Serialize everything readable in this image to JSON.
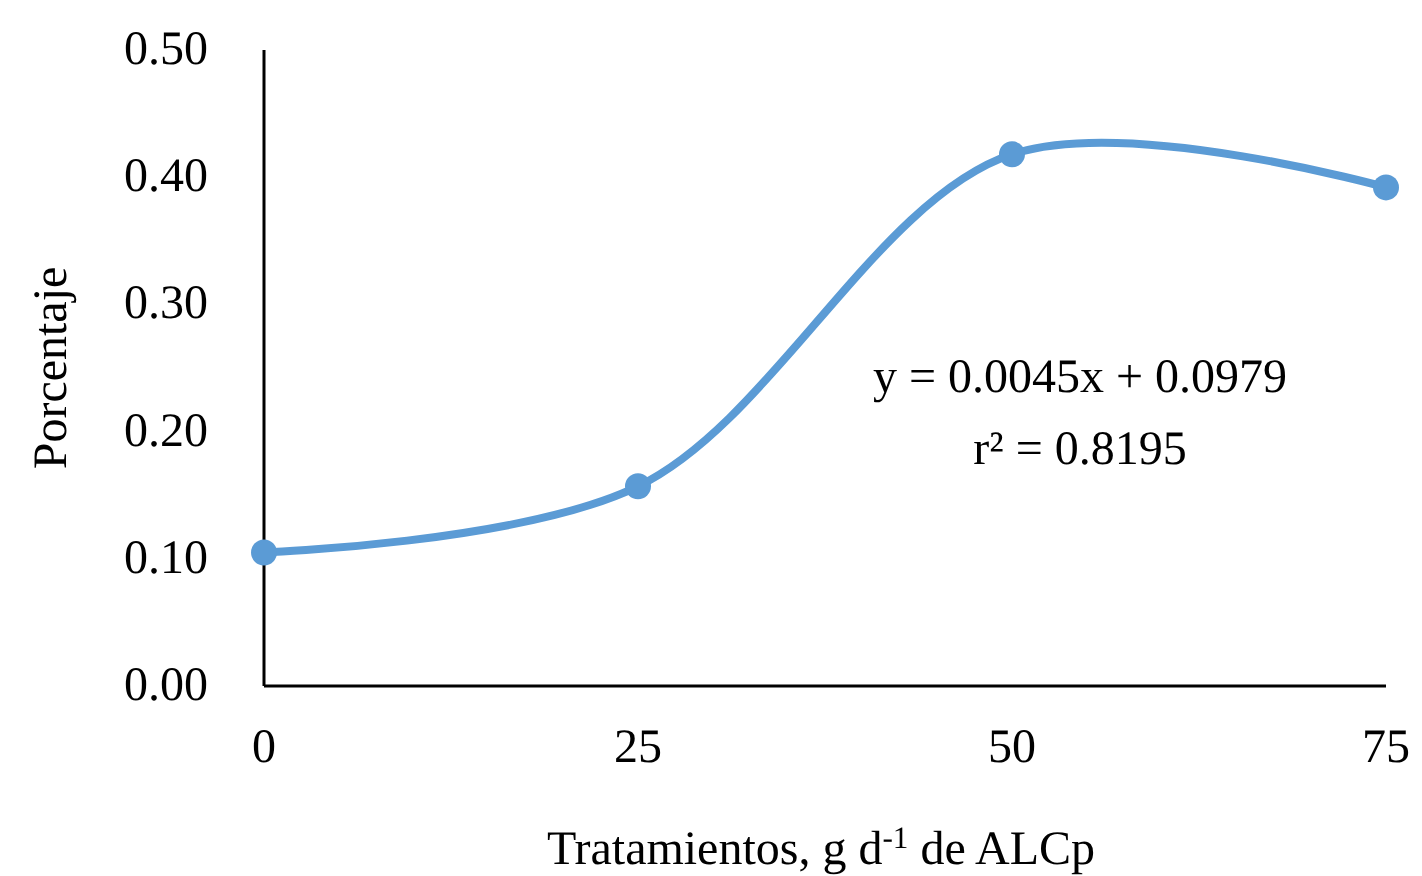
{
  "chart_data": {
    "type": "line",
    "xlabel": "Tratamientos, g d$^{-1}$ de ALCp",
    "ylabel": "Porcentaje",
    "x": [
      0,
      25,
      50,
      75
    ],
    "series": [
      {
        "color": "#5b9bd5",
        "values": [
          0.105,
          0.157,
          0.418,
          0.392
        ]
      }
    ],
    "xlim": [
      0,
      75
    ],
    "xticks": [
      0,
      25,
      50,
      75
    ],
    "ylim": [
      0,
      0.5
    ],
    "yticks": [
      {
        "value": 0,
        "label": "0.00"
      },
      {
        "value": 0.1,
        "label": "0.10"
      },
      {
        "value": 0.2,
        "label": "0.20"
      },
      {
        "value": 0.3,
        "label": "0.30"
      },
      {
        "value": 0.4,
        "label": "0.40"
      },
      {
        "value": 0.5,
        "label": "0.50"
      }
    ],
    "grid": false,
    "marker": "circle",
    "line_style": "solid",
    "annotations": [
      "y = 0.0045x + 0.0979",
      "r² = 0.8195"
    ]
  }
}
